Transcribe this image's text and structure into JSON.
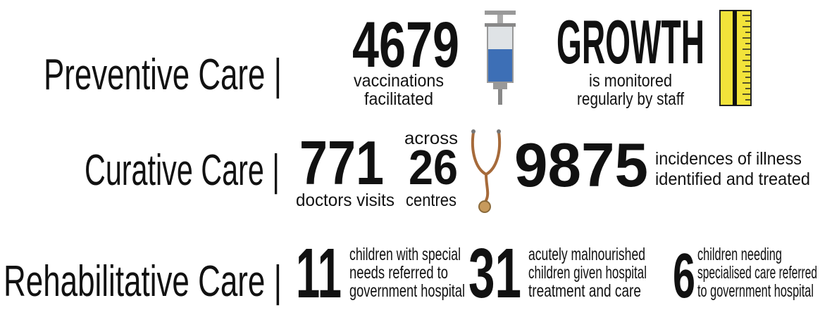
{
  "rows": [
    {
      "heading": "Preventive Care |",
      "items": [
        {
          "figure": "4679",
          "caption": [
            "vaccinations",
            "facilitated"
          ]
        },
        {
          "figure": "GROWTH",
          "caption": [
            "is monitored",
            "regularly by staff"
          ]
        }
      ]
    },
    {
      "heading": "Curative Care |",
      "items": [
        {
          "figure": "771",
          "caption": [
            "doctors visits"
          ]
        },
        {
          "above": "across",
          "figure": "26",
          "caption": [
            "centres"
          ]
        },
        {
          "figure": "9875",
          "caption": [
            "incidences of illness",
            "identified and treated"
          ]
        }
      ]
    },
    {
      "heading": "Rehabilitative Care |",
      "items": [
        {
          "figure": "11",
          "caption": [
            "children with special",
            "needs referred to",
            "government hospital"
          ]
        },
        {
          "figure": "31",
          "caption": [
            "acutely malnourished",
            "children given hospital",
            "treatment and care"
          ]
        },
        {
          "figure": "6",
          "caption": [
            "children needing",
            "specialised care referred",
            "to government hospital"
          ]
        }
      ]
    }
  ]
}
